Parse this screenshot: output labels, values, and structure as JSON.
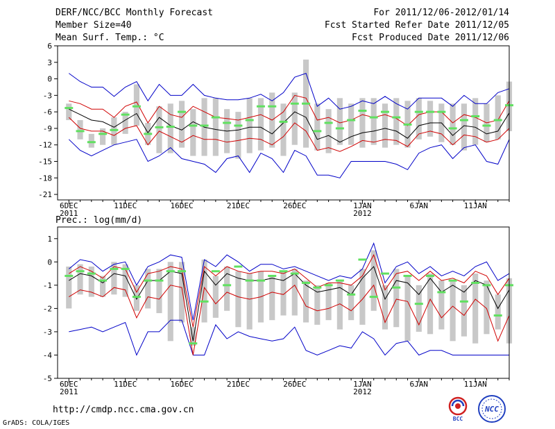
{
  "header": {
    "title": "DERF/NCC/BCC Monthly Forecast",
    "member_size": "Member Size=40",
    "variable": "Mean Surf. Temp.: °C",
    "period": "For 2011/12/06-2012/01/14",
    "refer_date": "Fcst Started Refer Date 2011/12/05",
    "produced_date": "Fcst Produced Date 2011/12/06"
  },
  "footer": {
    "url": "http://cmdp.ncc.cma.gov.cn",
    "credit": "GrADS: COLA/IGES",
    "logo1_text": "BCC",
    "logo2_text": "NCC"
  },
  "colors": {
    "median": "#000000",
    "spread": "#d00000",
    "extreme": "#0000c8",
    "box": "#c8c8c8",
    "marker": "#60e060"
  },
  "chart_data": [
    {
      "type": "line",
      "title": "Mean Surf. Temp.: °C",
      "ylabel": "°C",
      "ylim": [
        -22,
        6
      ],
      "yticks": [
        6,
        3,
        0,
        -3,
        -6,
        -9,
        -12,
        -15,
        -18,
        -21
      ],
      "xticks": [
        {
          "day": 1,
          "label": "6DEC",
          "sublabel": "2011"
        },
        {
          "day": 6,
          "label": "11DEC",
          "sublabel": ""
        },
        {
          "day": 11,
          "label": "16DEC",
          "sublabel": ""
        },
        {
          "day": 16,
          "label": "21DEC",
          "sublabel": ""
        },
        {
          "day": 21,
          "label": "26DEC",
          "sublabel": ""
        },
        {
          "day": 27,
          "label": "1JAN",
          "sublabel": "2012"
        },
        {
          "day": 32,
          "label": "6JAN",
          "sublabel": ""
        },
        {
          "day": 37,
          "label": "11JAN",
          "sublabel": ""
        }
      ],
      "x": [
        1,
        2,
        3,
        4,
        5,
        6,
        7,
        8,
        9,
        10,
        11,
        12,
        13,
        14,
        15,
        16,
        17,
        18,
        19,
        20,
        21,
        22,
        23,
        24,
        25,
        26,
        27,
        28,
        29,
        30,
        31,
        32,
        33,
        34,
        35,
        36,
        37,
        38,
        39,
        40
      ],
      "series": [
        {
          "name": "max",
          "role": "extreme",
          "values": [
            1.0,
            -0.5,
            -1.5,
            -1.5,
            -3.2,
            -1.5,
            -0.5,
            -4.0,
            -1.0,
            -3.0,
            -3.0,
            -1.0,
            -3.0,
            -3.5,
            -3.8,
            -3.8,
            -3.5,
            -2.8,
            -4.0,
            -2.5,
            0.3,
            1.0,
            -5.0,
            -3.5,
            -5.5,
            -5.0,
            -4.0,
            -4.5,
            -3.2,
            -4.5,
            -5.5,
            -3.5,
            -3.5,
            -3.5,
            -5.0,
            -3.0,
            -4.5,
            -4.5,
            -2.5,
            -1.8
          ]
        },
        {
          "name": "upper",
          "role": "spread",
          "values": [
            -4.0,
            -4.5,
            -5.5,
            -5.5,
            -7.0,
            -5.0,
            -4.2,
            -8.0,
            -5.0,
            -6.5,
            -7.0,
            -5.0,
            -6.0,
            -7.0,
            -7.2,
            -7.5,
            -7.0,
            -6.5,
            -7.5,
            -6.0,
            -3.0,
            -3.5,
            -7.5,
            -7.0,
            -8.0,
            -7.5,
            -6.5,
            -7.0,
            -6.5,
            -7.2,
            -8.5,
            -6.5,
            -6.0,
            -6.0,
            -8.0,
            -6.5,
            -7.0,
            -8.0,
            -7.5,
            -4.0
          ]
        },
        {
          "name": "median",
          "role": "median",
          "values": [
            -5.5,
            -6.5,
            -7.5,
            -7.8,
            -8.8,
            -7.5,
            -6.3,
            -9.8,
            -7.0,
            -8.5,
            -9.3,
            -7.8,
            -8.8,
            -9.2,
            -9.5,
            -9.3,
            -8.8,
            -8.8,
            -10.0,
            -8.0,
            -6.0,
            -7.0,
            -11.0,
            -10.3,
            -11.5,
            -10.5,
            -9.8,
            -9.5,
            -9.0,
            -9.5,
            -10.8,
            -8.5,
            -8.0,
            -8.0,
            -10.3,
            -8.5,
            -8.8,
            -10.0,
            -9.5,
            -6.2
          ]
        },
        {
          "name": "lower",
          "role": "spread",
          "values": [
            -7.0,
            -9.0,
            -9.5,
            -9.5,
            -10.3,
            -9.0,
            -8.5,
            -12.0,
            -9.5,
            -10.5,
            -11.5,
            -10.3,
            -11.0,
            -11.0,
            -11.5,
            -11.2,
            -10.8,
            -11.0,
            -12.0,
            -10.5,
            -8.0,
            -9.5,
            -13.0,
            -12.5,
            -13.2,
            -12.3,
            -11.2,
            -11.5,
            -11.0,
            -11.2,
            -12.3,
            -10.0,
            -9.5,
            -10.0,
            -12.0,
            -10.2,
            -10.5,
            -11.5,
            -11.0,
            -9.0
          ]
        },
        {
          "name": "min",
          "role": "extreme",
          "values": [
            -11.0,
            -13.0,
            -14.0,
            -13.0,
            -12.0,
            -11.5,
            -11.0,
            -15.0,
            -14.0,
            -12.5,
            -14.5,
            -15.0,
            -15.5,
            -17.0,
            -14.5,
            -14.0,
            -17.0,
            -13.5,
            -14.5,
            -17.0,
            -13.0,
            -14.0,
            -17.5,
            -17.5,
            -18.0,
            -15.0,
            -15.0,
            -15.0,
            -15.0,
            -15.5,
            -16.5,
            -13.5,
            -12.5,
            -12.0,
            -14.5,
            -12.5,
            -12.0,
            -15.0,
            -15.5,
            -11.0
          ]
        },
        {
          "name": "box_top",
          "role": "box",
          "values": [
            -4.5,
            -7.5,
            -10.0,
            -9.0,
            -7.0,
            -6.0,
            -1.0,
            -8.0,
            -5.0,
            -4.5,
            -4.0,
            -5.5,
            -3.5,
            -3.5,
            -5.5,
            -6.0,
            -3.5,
            -3.5,
            -2.5,
            -4.5,
            -2.5,
            3.5,
            -4.5,
            -5.5,
            -3.5,
            -4.5,
            -3.5,
            -3.5,
            -4.5,
            -3.5,
            -4.0,
            -3.5,
            -4.0,
            -4.5,
            -4.5,
            -4.5,
            -3.5,
            -4.5,
            -3.0,
            -0.5
          ]
        },
        {
          "name": "box_bottom",
          "role": "box",
          "values": [
            -7.5,
            -11.0,
            -12.5,
            -12.0,
            -12.0,
            -10.0,
            -8.5,
            -12.0,
            -13.5,
            -13.5,
            -12.5,
            -14.0,
            -14.0,
            -14.0,
            -13.5,
            -14.5,
            -13.5,
            -13.0,
            -12.5,
            -14.0,
            -12.0,
            -12.5,
            -13.0,
            -13.5,
            -12.0,
            -12.0,
            -12.5,
            -12.0,
            -12.5,
            -12.0,
            -12.5,
            -11.0,
            -10.5,
            -11.5,
            -12.0,
            -13.0,
            -12.0,
            -11.5,
            -11.0,
            -9.5
          ]
        },
        {
          "name": "marker",
          "role": "marker",
          "values": [
            -5.3,
            -9.5,
            -11.5,
            -10.0,
            -9.3,
            -6.5,
            -5.0,
            -10.0,
            -8.8,
            -8.7,
            -6.0,
            -8.5,
            -8.5,
            -7.0,
            -8.0,
            -8.5,
            -7.5,
            -5.0,
            -5.0,
            -7.8,
            -4.5,
            -4.5,
            -9.5,
            -8.0,
            -9.0,
            -7.5,
            -5.8,
            -7.0,
            -6.0,
            -7.0,
            -8.3,
            -6.0,
            -6.0,
            -6.0,
            -9.0,
            -7.5,
            -6.8,
            -8.5,
            -7.5,
            -4.8
          ]
        }
      ]
    },
    {
      "type": "line",
      "title": "Prec.: log(mm/d)",
      "ylabel": "log(mm/d)",
      "ylim": [
        -5,
        1.5
      ],
      "yticks": [
        1,
        0,
        -1,
        -2,
        -3,
        -4,
        -5
      ],
      "xticks": [
        {
          "day": 1,
          "label": "6DEC",
          "sublabel": "2011"
        },
        {
          "day": 6,
          "label": "11DEC",
          "sublabel": ""
        },
        {
          "day": 11,
          "label": "16DEC",
          "sublabel": ""
        },
        {
          "day": 16,
          "label": "21DEC",
          "sublabel": ""
        },
        {
          "day": 21,
          "label": "26DEC",
          "sublabel": ""
        },
        {
          "day": 27,
          "label": "1JAN",
          "sublabel": "2012"
        },
        {
          "day": 32,
          "label": "6JAN",
          "sublabel": ""
        },
        {
          "day": 37,
          "label": "11JAN",
          "sublabel": ""
        }
      ],
      "x": [
        1,
        2,
        3,
        4,
        5,
        6,
        7,
        8,
        9,
        10,
        11,
        12,
        13,
        14,
        15,
        16,
        17,
        18,
        19,
        20,
        21,
        22,
        23,
        24,
        25,
        26,
        27,
        28,
        29,
        30,
        31,
        32,
        33,
        34,
        35,
        36,
        37,
        38,
        39,
        40
      ],
      "series": [
        {
          "name": "max",
          "role": "extreme",
          "values": [
            -0.3,
            0.1,
            0.0,
            -0.4,
            -0.1,
            0.0,
            -1.0,
            -0.2,
            0.0,
            0.3,
            0.2,
            -2.5,
            0.1,
            -0.2,
            0.3,
            0.0,
            -0.4,
            -0.1,
            -0.1,
            -0.3,
            -0.2,
            -0.4,
            -0.6,
            -0.8,
            -0.6,
            -0.7,
            -0.3,
            0.8,
            -0.9,
            -0.2,
            0.0,
            -0.5,
            -0.2,
            -0.6,
            -0.4,
            -0.6,
            -0.2,
            0.0,
            -0.8,
            -0.5
          ]
        },
        {
          "name": "upper",
          "role": "spread",
          "values": [
            -0.5,
            -0.2,
            -0.4,
            -0.7,
            -0.2,
            -0.3,
            -1.3,
            -0.5,
            -0.4,
            -0.2,
            -0.3,
            -2.8,
            -0.2,
            -0.6,
            -0.2,
            -0.4,
            -0.5,
            -0.4,
            -0.4,
            -0.5,
            -0.3,
            -0.7,
            -1.1,
            -0.9,
            -0.9,
            -1.0,
            -0.6,
            0.3,
            -1.2,
            -0.5,
            -0.4,
            -0.8,
            -0.4,
            -0.8,
            -0.7,
            -0.9,
            -0.4,
            -0.6,
            -1.4,
            -0.7
          ]
        },
        {
          "name": "median",
          "role": "median",
          "values": [
            -0.8,
            -0.5,
            -0.6,
            -0.9,
            -0.5,
            -0.6,
            -1.6,
            -0.8,
            -0.8,
            -0.4,
            -0.5,
            -3.4,
            -0.4,
            -1.0,
            -0.5,
            -0.7,
            -0.8,
            -0.8,
            -0.7,
            -0.8,
            -0.5,
            -1.0,
            -1.3,
            -1.2,
            -1.1,
            -1.4,
            -0.7,
            -0.2,
            -1.6,
            -0.8,
            -0.9,
            -1.4,
            -0.7,
            -1.3,
            -1.0,
            -1.3,
            -0.8,
            -1.0,
            -2.0,
            -1.2
          ]
        },
        {
          "name": "lower",
          "role": "spread",
          "values": [
            -1.5,
            -1.2,
            -1.3,
            -1.5,
            -1.1,
            -1.2,
            -2.4,
            -1.5,
            -1.6,
            -1.0,
            -1.1,
            -4.0,
            -1.1,
            -1.8,
            -1.3,
            -1.5,
            -1.6,
            -1.5,
            -1.3,
            -1.4,
            -1.0,
            -1.9,
            -2.1,
            -2.0,
            -1.8,
            -2.1,
            -1.6,
            -1.0,
            -2.6,
            -1.6,
            -1.7,
            -2.7,
            -1.6,
            -2.4,
            -1.9,
            -2.3,
            -1.6,
            -2.0,
            -3.4,
            -2.3
          ]
        },
        {
          "name": "min",
          "role": "extreme",
          "values": [
            -3.0,
            -2.9,
            -2.8,
            -3.0,
            -2.8,
            -2.6,
            -4.0,
            -3.0,
            -3.0,
            -2.5,
            -2.5,
            -4.0,
            -4.0,
            -2.7,
            -3.3,
            -3.0,
            -3.2,
            -3.3,
            -3.4,
            -3.3,
            -2.8,
            -3.8,
            -4.0,
            -3.8,
            -3.6,
            -3.7,
            -3.0,
            -3.3,
            -4.0,
            -3.5,
            -3.4,
            -4.0,
            -3.8,
            -3.8,
            -4.0,
            -4.0,
            -4.0,
            -4.0,
            -4.0,
            -4.0
          ]
        },
        {
          "name": "box_top",
          "role": "box",
          "values": [
            -0.2,
            -0.1,
            -0.2,
            -0.6,
            0.0,
            -0.1,
            -1.0,
            -0.3,
            -0.3,
            0.0,
            0.0,
            -2.8,
            0.1,
            -0.6,
            -0.2,
            -0.4,
            -0.5,
            -0.4,
            -0.6,
            -0.4,
            -0.3,
            -0.8,
            -1.0,
            -0.9,
            -0.8,
            -1.0,
            -0.3,
            0.5,
            -1.0,
            -0.3,
            -0.6,
            -1.0,
            -0.5,
            -0.8,
            -0.8,
            -1.0,
            -0.5,
            -0.8,
            -1.4,
            -0.7
          ]
        },
        {
          "name": "box_bottom",
          "role": "box",
          "values": [
            -2.0,
            -1.4,
            -1.5,
            -1.5,
            -1.4,
            -1.5,
            -2.1,
            -2.0,
            -2.2,
            -3.4,
            -2.6,
            -3.6,
            -2.6,
            -2.4,
            -2.1,
            -2.8,
            -2.9,
            -2.6,
            -2.5,
            -2.3,
            -2.3,
            -2.6,
            -2.7,
            -2.5,
            -2.9,
            -2.5,
            -2.7,
            -2.1,
            -2.9,
            -2.8,
            -3.4,
            -3.0,
            -3.1,
            -2.9,
            -3.4,
            -3.2,
            -3.5,
            -3.1,
            -2.9,
            -3.5
          ]
        },
        {
          "name": "marker",
          "role": "marker",
          "values": [
            -0.6,
            -0.4,
            -0.5,
            -0.8,
            -0.3,
            -0.3,
            -1.5,
            -0.8,
            -0.8,
            -0.4,
            -0.4,
            -3.5,
            -1.7,
            -0.4,
            -1.0,
            -0.2,
            -0.8,
            -0.8,
            -0.6,
            -0.4,
            -0.5,
            -0.9,
            -1.1,
            -1.0,
            -0.8,
            -1.4,
            0.1,
            -1.5,
            -0.5,
            -1.1,
            -0.6,
            -1.8,
            -0.6,
            -1.3,
            -0.8,
            -1.7,
            -0.9,
            -1.0,
            -2.3,
            -1.0
          ]
        }
      ]
    }
  ]
}
